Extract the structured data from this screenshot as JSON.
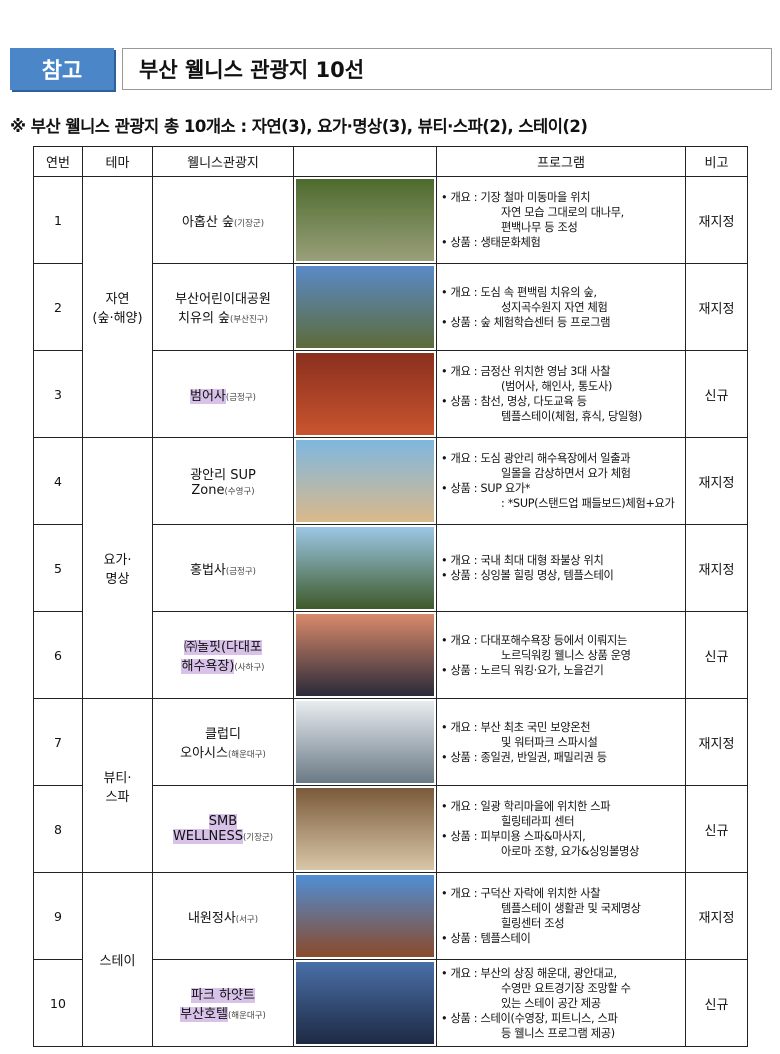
{
  "tag": "참고",
  "title": "부산 웰니스 관광지 10선",
  "subtitle": "※ 부산 웰니스 관광지 총 10개소 : 자연(3), 요가·명상(3), 뷰티·스파(2), 스테이(2)",
  "headers": [
    "연번",
    "테마",
    "웰니스관광지",
    "",
    "프로그램",
    "비고"
  ],
  "themes": [
    "자연\n(숲·해양)",
    "요가·\n명상",
    "뷰티·\n스파",
    "스테이"
  ],
  "rows": [
    {
      "no": "1",
      "name": "아홉산 숲",
      "loc": "(기장군)",
      "note": "재지정",
      "lines": [
        "• 개요 : 기장 철마 미동마을 위치",
        "자연 모습 그대로의 대나무,",
        "편백나무 등 조성",
        "• 상품 : 생태문화체험"
      ]
    },
    {
      "no": "2",
      "name": "부산어린이대공원\n치유의 숲",
      "loc": "(부산진구)",
      "note": "재지정",
      "lines": [
        "• 개요 : 도심 속 편백림 치유의 숲,",
        "성지곡수원지 자연 체험",
        "• 상품 : 숲 체험학습센터 등 프로그램"
      ]
    },
    {
      "no": "3",
      "name": "범어사",
      "loc": "(금정구)",
      "note": "신규",
      "lines": [
        "• 개요 : 금정산 위치한 영남 3대 사찰",
        "(범어사, 해인사, 통도사)",
        "• 상품 : 참선, 명상, 다도교육 등",
        "템플스테이(체험, 휴식, 당일형)"
      ]
    },
    {
      "no": "4",
      "name": "광안리 SUP\nZone",
      "loc": "(수영구)",
      "note": "재지정",
      "lines": [
        "• 개요 : 도심 광안리 해수욕장에서 일출과",
        "일몰을 감상하면서 요가 체험",
        "• 상품 :  SUP 요가*",
        " : *SUP(스탠드업 패들보드)체험+요가"
      ]
    },
    {
      "no": "5",
      "name": "홍법사",
      "loc": "(금정구)",
      "note": "재지정",
      "lines": [
        "• 개요 : 국내 최대 대형 좌불상 위치",
        "• 상품 : 싱잉볼 힐링 명상, 템플스테이"
      ]
    },
    {
      "no": "6",
      "name": "㈜놀핏(다대포\n해수욕장)",
      "loc": "(사하구)",
      "note": "신규",
      "lines": [
        "• 개요 : 다대포해수욕장 등에서 이뤄지는",
        "노르딕워킹 웰니스 상품 운영",
        "• 상품 : 노르딕 워킹·요가, 노을걷기"
      ]
    },
    {
      "no": "7",
      "name": "클럽디\n오아시스",
      "loc": "(해운대구)",
      "note": "재지정",
      "lines": [
        "• 개요 : 부산 최초 국민 보양온천",
        "및 워터파크 스파시설",
        "• 상품 : 종일권, 반일권, 패밀리권 등"
      ]
    },
    {
      "no": "8",
      "name": "SMB\nWELLNESS",
      "loc": "(기장군)",
      "note": "신규",
      "lines": [
        "• 개요 : 일광 학리마을에 위치한 스파",
        "힐링테라피 센터",
        "• 상품 : 피부미용 스파&마사지,",
        "아로마 조향, 요가&싱잉볼명상"
      ]
    },
    {
      "no": "9",
      "name": "내원정사",
      "loc": "(서구)",
      "note": "재지정",
      "lines": [
        "• 개요 : 구덕산 자락에 위치한 사찰",
        "템플스테이 생활관 및 국제명상",
        "힐링센터 조성",
        "• 상품 : 템플스테이"
      ]
    },
    {
      "no": "10",
      "name": "파크 하얏트\n부산호텔",
      "loc": "(해운대구)",
      "note": "신규",
      "lines": [
        "• 개요 : 부산의 상징 해운대, 광안대교,",
        "수영만 요트경기장 조망할 수",
        "있는 스테이 공간 제공",
        "• 상품 : 스테이(수영장, 피트니스, 스파",
        "등 웰니스 프로그램 제공)"
      ]
    }
  ],
  "photo_colors": [
    [
      "#4d6b2e",
      "#9aa07a"
    ],
    [
      "#5a8ac8",
      "#5d6b3a"
    ],
    [
      "#8a2f1e",
      "#c9552f"
    ],
    [
      "#7fb7e0",
      "#d9b98a"
    ],
    [
      "#9cc7e6",
      "#3e5a2a"
    ],
    [
      "#d98a6a",
      "#2b2a3a"
    ],
    [
      "#e8ecef",
      "#6a7a86"
    ],
    [
      "#7a5a3a",
      "#d8c7a8"
    ],
    [
      "#4f8fd6",
      "#8a4a2a"
    ],
    [
      "#4a6fa8",
      "#1e2a44"
    ]
  ]
}
